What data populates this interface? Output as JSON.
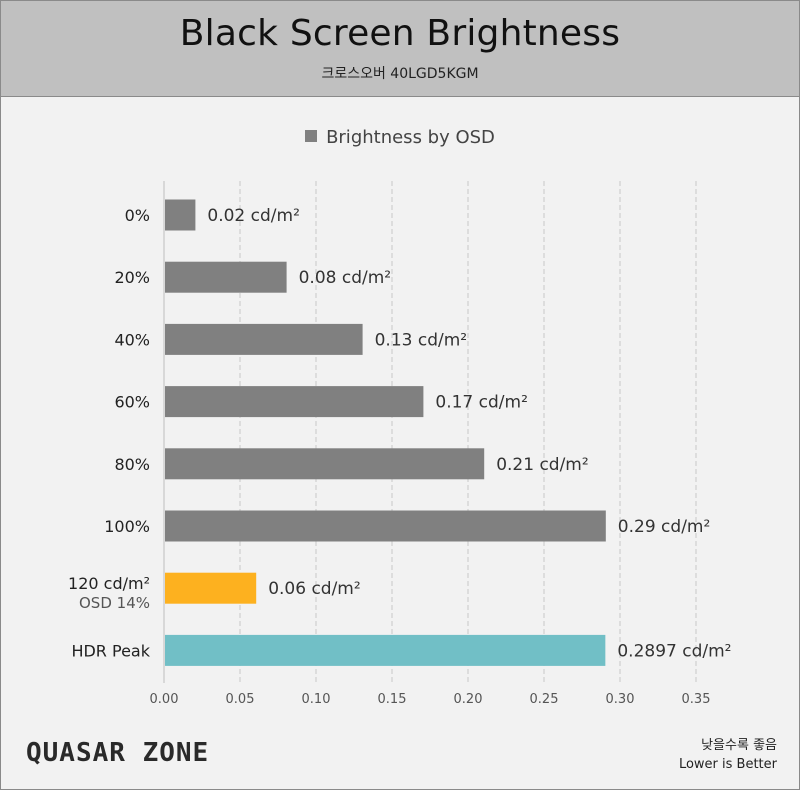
{
  "header": {
    "title": "Black Screen Brightness",
    "subtitle": "크로스오버 40LGD5KGM"
  },
  "chart_data": {
    "type": "bar",
    "orientation": "horizontal",
    "legend_position": "top-center",
    "grid": true,
    "xlim": [
      0,
      0.35
    ],
    "x_ticks": [
      "0.00",
      "0.05",
      "0.10",
      "0.15",
      "0.20",
      "0.25",
      "0.30",
      "0.35"
    ],
    "series": [
      {
        "name": "Brightness by OSD"
      }
    ],
    "bars": [
      {
        "label": "0%",
        "value": 0.02,
        "value_label": "0.02 cd/m²",
        "color": "#808080"
      },
      {
        "label": "20%",
        "value": 0.08,
        "value_label": "0.08 cd/m²",
        "color": "#808080"
      },
      {
        "label": "40%",
        "value": 0.13,
        "value_label": "0.13 cd/m²",
        "color": "#808080"
      },
      {
        "label": "60%",
        "value": 0.17,
        "value_label": "0.17 cd/m²",
        "color": "#808080"
      },
      {
        "label": "80%",
        "value": 0.21,
        "value_label": "0.21 cd/m²",
        "color": "#808080"
      },
      {
        "label": "100%",
        "value": 0.29,
        "value_label": "0.29 cd/m²",
        "color": "#808080"
      },
      {
        "label": "120 cd/m²",
        "sublabel": "OSD 14%",
        "value": 0.06,
        "value_label": "0.06 cd/m²",
        "color": "#FDB11F"
      },
      {
        "label": "HDR Peak",
        "value": 0.2897,
        "value_label": "0.2897 cd/m²",
        "color": "#71BFC6"
      }
    ]
  },
  "footer": {
    "brand": "QUASAR ZONE",
    "note_line1": "낮을수록 좋음",
    "note_line2": "Lower is Better"
  }
}
